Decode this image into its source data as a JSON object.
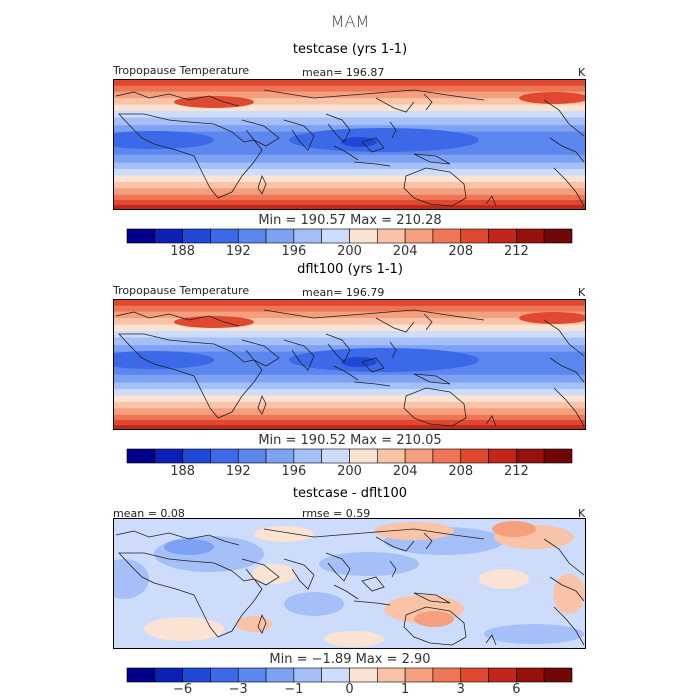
{
  "figure_title": "MAM",
  "colors": {
    "abs_scale": [
      "#00008b",
      "#0b20b4",
      "#1f48d6",
      "#3b69e8",
      "#5b87ef",
      "#7ea2f3",
      "#a5c0f8",
      "#cddcfb",
      "#fbe3d3",
      "#f8c3a6",
      "#f49f7d",
      "#ee7656",
      "#e0492f",
      "#c0271a",
      "#96100c",
      "#6e0705"
    ],
    "ocean_base": "#3b69e8"
  },
  "chart_data": [
    {
      "type": "heatmap",
      "title": "testcase (yrs 1-1)",
      "variable": "Tropopause Temperature",
      "mean_text": "mean= 196.87",
      "units": "K",
      "stats_text": "Min = 190.57 Max = 210.28",
      "min": 190.57,
      "max": 210.28,
      "mean": 196.87,
      "colorbar_levels": [
        186,
        188,
        190,
        192,
        194,
        196,
        198,
        200,
        202,
        204,
        206,
        208,
        210,
        212,
        214
      ],
      "colorbar_tick_labels": [
        "188",
        "192",
        "196",
        "200",
        "204",
        "208",
        "212"
      ],
      "colorbar_tick_values": [
        188,
        192,
        196,
        200,
        204,
        208,
        212
      ]
    },
    {
      "type": "heatmap",
      "title": "dflt100 (yrs 1-1)",
      "variable": "Tropopause Temperature",
      "mean_text": "mean= 196.79",
      "units": "K",
      "stats_text": "Min = 190.52 Max = 210.05",
      "min": 190.52,
      "max": 210.05,
      "mean": 196.79,
      "colorbar_levels": [
        186,
        188,
        190,
        192,
        194,
        196,
        198,
        200,
        202,
        204,
        206,
        208,
        210,
        212,
        214
      ],
      "colorbar_tick_labels": [
        "188",
        "192",
        "196",
        "200",
        "204",
        "208",
        "212"
      ],
      "colorbar_tick_values": [
        188,
        192,
        196,
        200,
        204,
        208,
        212
      ]
    },
    {
      "type": "heatmap",
      "title": "testcase - dflt100",
      "mean_text": "mean = 0.08",
      "rmse_text": "rmse = 0.59",
      "units": "K",
      "stats_text": "Min = −1.89 Max = 2.90",
      "min": -1.89,
      "max": 2.9,
      "mean": 0.08,
      "rmse": 0.59,
      "colorbar_levels": [
        -8,
        -6,
        -4,
        -3,
        -2,
        -1,
        -0.5,
        0,
        0.5,
        1,
        2,
        3,
        4,
        6,
        8
      ],
      "colorbar_tick_labels": [
        "−6",
        "−3",
        "−1",
        "0",
        "1",
        "3",
        "6"
      ],
      "colorbar_tick_values": [
        -6,
        -3,
        -1,
        0,
        1,
        3,
        6
      ]
    }
  ]
}
